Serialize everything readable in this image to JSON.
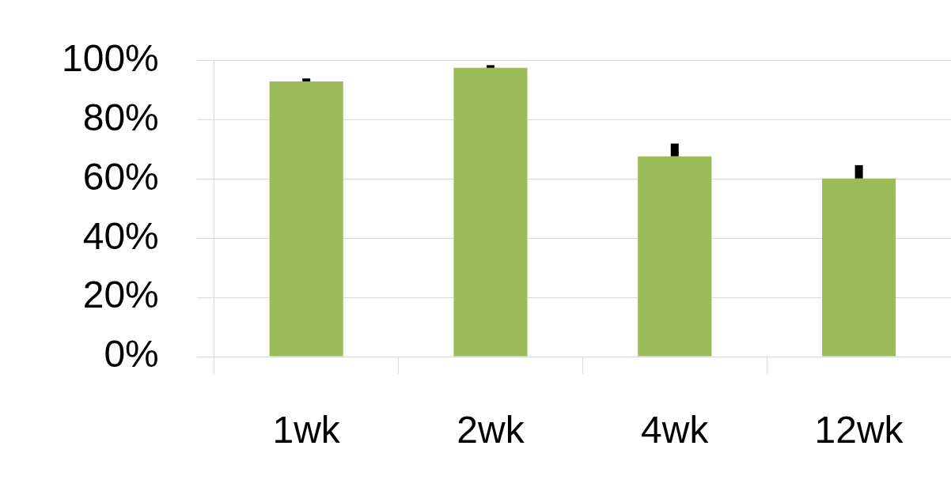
{
  "chart_data": {
    "type": "bar",
    "categories": [
      "1wk",
      "2wk",
      "4wk",
      "12wk"
    ],
    "values": [
      93,
      97.6,
      67.7,
      60.2
    ],
    "errors": [
      [
        93,
        94
      ],
      [
        97.6,
        98.5
      ],
      [
        67.7,
        72
      ],
      [
        60.2,
        64.7
      ]
    ],
    "color": "#9bbb59",
    "ylim": [
      0,
      100
    ],
    "yticks": [
      {
        "value": 0,
        "label": "0%"
      },
      {
        "value": 20,
        "label": "20%"
      },
      {
        "value": 40,
        "label": "40%"
      },
      {
        "value": 60,
        "label": "60%"
      },
      {
        "value": 80,
        "label": "80%"
      },
      {
        "value": 100,
        "label": "100%"
      }
    ],
    "grid": "y",
    "legend": false
  }
}
